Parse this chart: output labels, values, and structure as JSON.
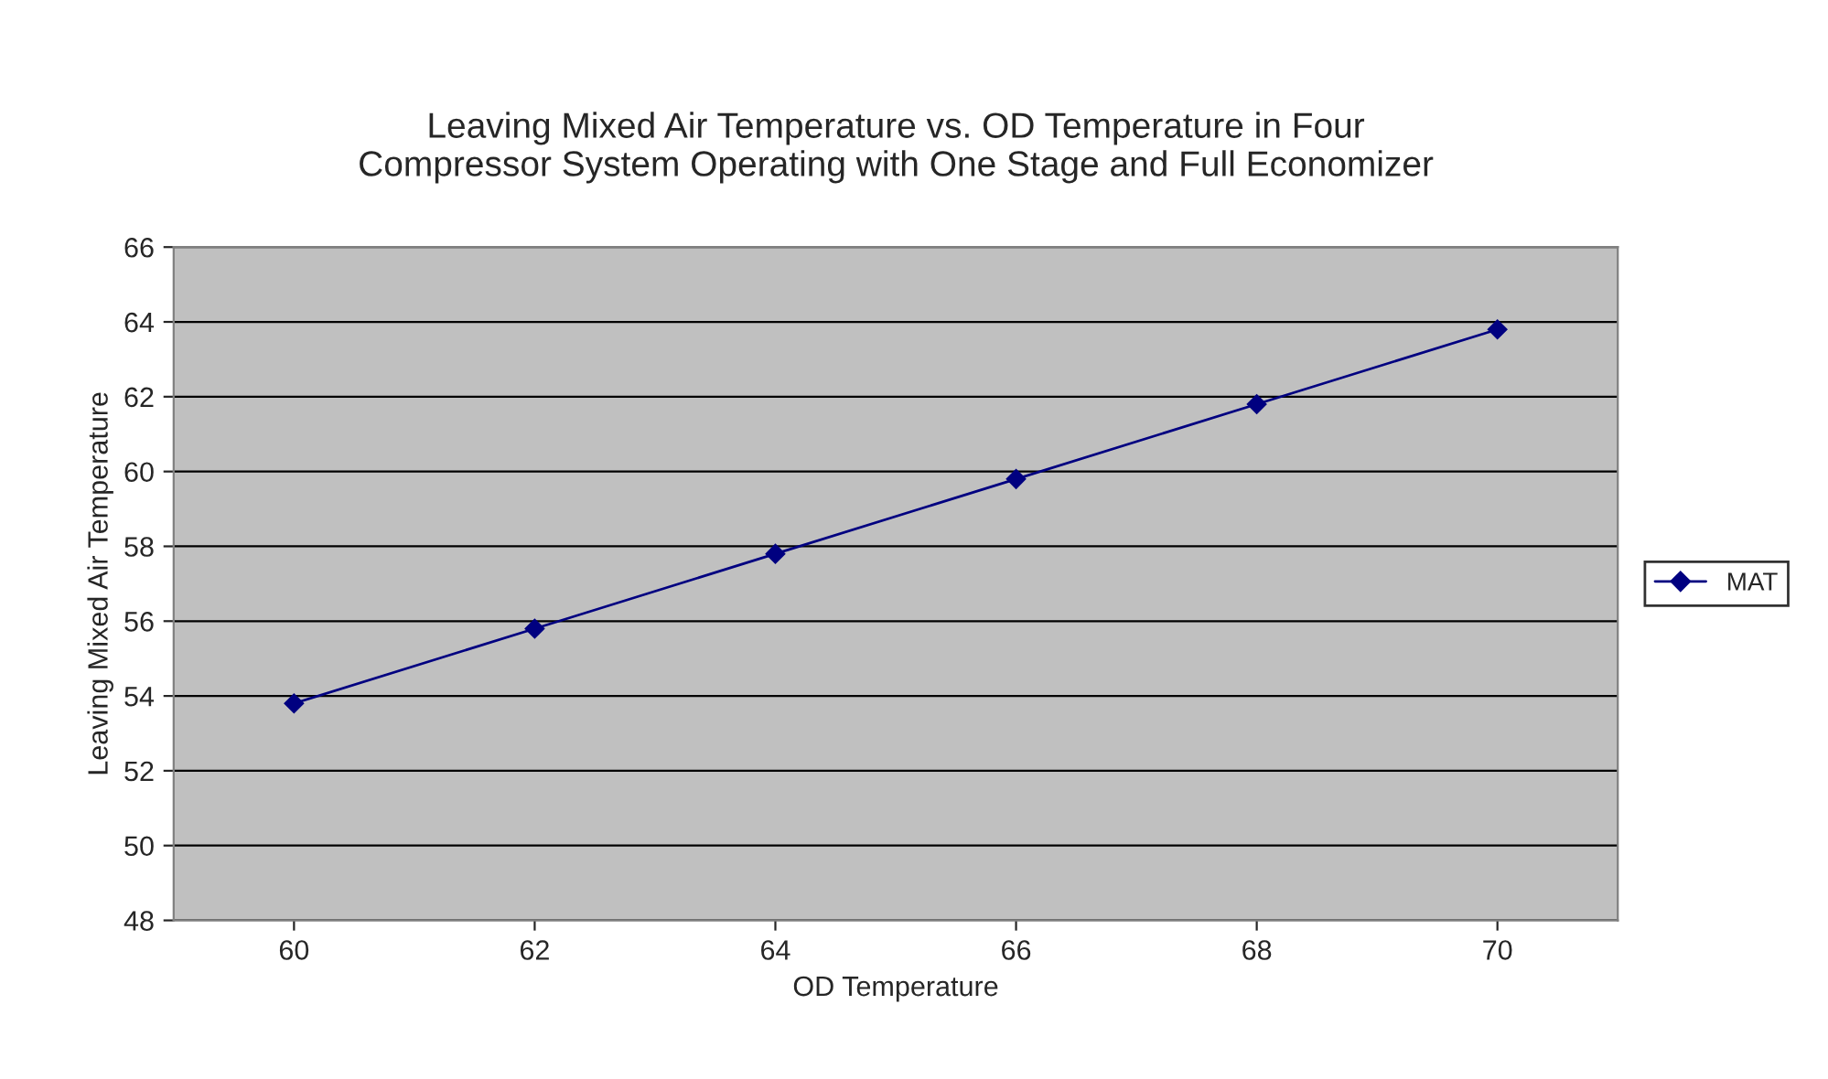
{
  "chart_data": {
    "type": "line",
    "title": "Leaving Mixed Air Temperature vs. OD Temperature in Four\nCompressor System Operating with One Stage and Full Economizer",
    "xlabel": "OD Temperature",
    "ylabel": "Leaving Mixed Air Temperature",
    "categories": [
      "60",
      "62",
      "64",
      "66",
      "68",
      "70"
    ],
    "series": [
      {
        "name": "MAT",
        "color": "#000080",
        "values": [
          53.8,
          55.8,
          57.8,
          59.8,
          61.8,
          63.8
        ]
      }
    ],
    "ylim": [
      48,
      66
    ],
    "yticks": [
      48,
      50,
      52,
      54,
      56,
      58,
      60,
      62,
      64,
      66
    ],
    "grid": "y",
    "legend": "right",
    "marker": "diamond",
    "line_style": "solid"
  }
}
